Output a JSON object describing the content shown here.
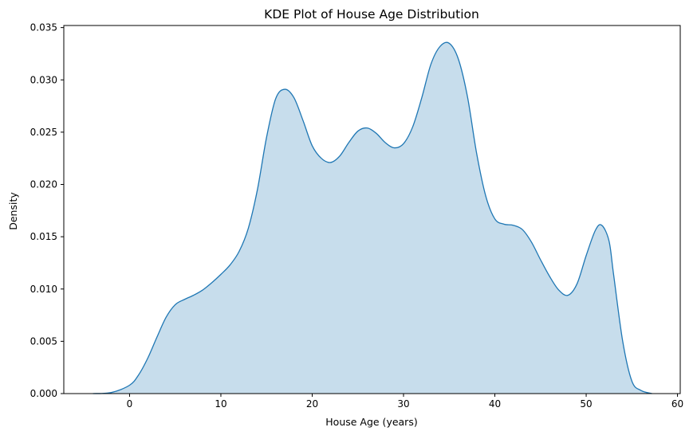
{
  "chart_data": {
    "type": "area",
    "title": "KDE Plot of House Age Distribution",
    "xlabel": "House Age (years)",
    "ylabel": "Density",
    "xlim": [
      -7.2,
      60.3
    ],
    "ylim": [
      0,
      0.0352
    ],
    "x_ticks": [
      0,
      10,
      20,
      30,
      40,
      50,
      60
    ],
    "x_tick_labels": [
      "0",
      "10",
      "20",
      "30",
      "40",
      "50",
      "60"
    ],
    "y_ticks": [
      0,
      0.005,
      0.01,
      0.015,
      0.02,
      0.025,
      0.03,
      0.035
    ],
    "y_tick_labels": [
      "0.000",
      "0.005",
      "0.010",
      "0.015",
      "0.020",
      "0.025",
      "0.030",
      "0.035"
    ],
    "grid": false,
    "legend": "none",
    "series": [
      {
        "color": "#1f77b4",
        "fill_color": "#1f77b4",
        "fill_opacity": 0.25,
        "x": [
          -4,
          -2,
          0,
          1,
          2,
          3,
          4,
          5,
          6,
          7,
          8,
          9,
          10,
          11,
          12,
          13,
          14,
          15,
          16,
          17,
          18,
          19,
          20,
          21,
          22,
          23,
          24,
          25,
          26,
          27,
          28,
          29,
          30,
          31,
          32,
          33,
          34,
          35,
          36,
          37,
          38,
          39,
          40,
          41,
          42,
          43,
          44,
          45,
          46,
          47,
          48,
          49,
          50,
          51,
          51.7,
          52.5,
          53,
          54,
          55,
          56,
          57.2
        ],
        "y": [
          0.0,
          0.0001,
          0.0008,
          0.0018,
          0.0034,
          0.0054,
          0.0073,
          0.0085,
          0.009,
          0.0094,
          0.0099,
          0.0106,
          0.0114,
          0.0123,
          0.0136,
          0.0158,
          0.0195,
          0.0245,
          0.0282,
          0.0291,
          0.0283,
          0.0261,
          0.0237,
          0.0225,
          0.0221,
          0.0227,
          0.024,
          0.0251,
          0.0254,
          0.0249,
          0.024,
          0.0235,
          0.0239,
          0.0255,
          0.0283,
          0.0315,
          0.0332,
          0.0335,
          0.032,
          0.0284,
          0.023,
          0.0189,
          0.0167,
          0.0162,
          0.0161,
          0.0157,
          0.0145,
          0.0128,
          0.0112,
          0.0099,
          0.0094,
          0.0105,
          0.0132,
          0.0156,
          0.0161,
          0.0146,
          0.0114,
          0.005,
          0.0012,
          0.0003,
          0.0
        ]
      }
    ]
  }
}
